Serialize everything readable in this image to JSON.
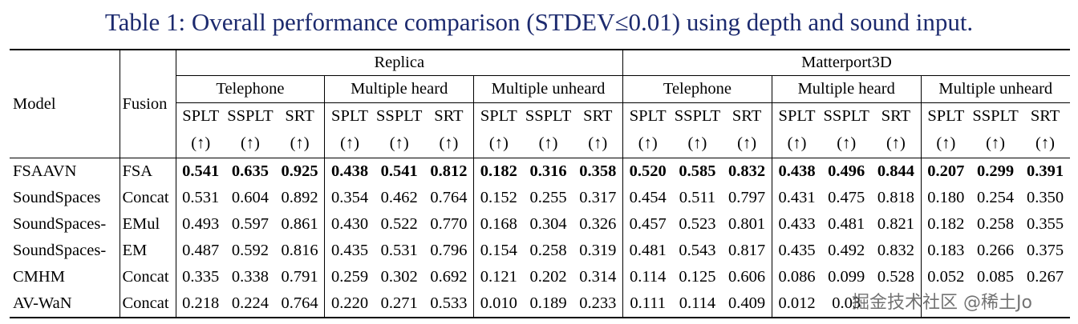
{
  "caption": {
    "label": "Table 1:",
    "text": "Overall performance comparison (STDEV≤0.01) using depth and sound input."
  },
  "headers": {
    "model": "Model",
    "fusion": "Fusion",
    "datasets": [
      "Replica",
      "Matterport3D"
    ],
    "scenarios": [
      "Telephone",
      "Multiple heard",
      "Multiple unheard",
      "Telephone",
      "Multiple heard",
      "Multiple unheard"
    ],
    "metrics": [
      "SPLT",
      "SSPLT",
      "SRT"
    ],
    "arrow": "(↑)"
  },
  "rows": [
    {
      "model": "FSAAVN",
      "fusion": "FSA",
      "bold": true,
      "values": [
        "0.541",
        "0.635",
        "0.925",
        "0.438",
        "0.541",
        "0.812",
        "0.182",
        "0.316",
        "0.358",
        "0.520",
        "0.585",
        "0.832",
        "0.438",
        "0.496",
        "0.844",
        "0.207",
        "0.299",
        "0.391"
      ]
    },
    {
      "model": "SoundSpaces",
      "fusion": "Concat",
      "bold": false,
      "values": [
        "0.531",
        "0.604",
        "0.892",
        "0.354",
        "0.462",
        "0.764",
        "0.152",
        "0.255",
        "0.317",
        "0.454",
        "0.511",
        "0.797",
        "0.431",
        "0.475",
        "0.818",
        "0.180",
        "0.254",
        "0.350"
      ]
    },
    {
      "model": "SoundSpaces-",
      "fusion": "EMul",
      "bold": false,
      "values": [
        "0.493",
        "0.597",
        "0.861",
        "0.430",
        "0.522",
        "0.770",
        "0.168",
        "0.304",
        "0.326",
        "0.457",
        "0.523",
        "0.801",
        "0.433",
        "0.481",
        "0.821",
        "0.182",
        "0.258",
        "0.355"
      ]
    },
    {
      "model": "SoundSpaces-",
      "fusion": "EM",
      "bold": false,
      "values": [
        "0.487",
        "0.592",
        "0.816",
        "0.435",
        "0.531",
        "0.796",
        "0.154",
        "0.258",
        "0.319",
        "0.481",
        "0.543",
        "0.817",
        "0.435",
        "0.492",
        "0.832",
        "0.183",
        "0.266",
        "0.375"
      ]
    },
    {
      "model": "CMHM",
      "fusion": "Concat",
      "bold": false,
      "values": [
        "0.335",
        "0.338",
        "0.791",
        "0.259",
        "0.302",
        "0.692",
        "0.121",
        "0.202",
        "0.314",
        "0.114",
        "0.125",
        "0.606",
        "0.086",
        "0.099",
        "0.528",
        "0.052",
        "0.085",
        "0.267"
      ]
    },
    {
      "model": "AV-WaN",
      "fusion": "Concat",
      "bold": false,
      "values": [
        "0.218",
        "0.224",
        "0.764",
        "0.220",
        "0.271",
        "0.533",
        "0.010",
        "0.189",
        "0.233",
        "0.111",
        "0.114",
        "0.409",
        "0.012",
        "0.03",
        "",
        "",
        "",
        ""
      ]
    }
  ],
  "watermark": "掘金技术社区 @稀土Jo"
}
